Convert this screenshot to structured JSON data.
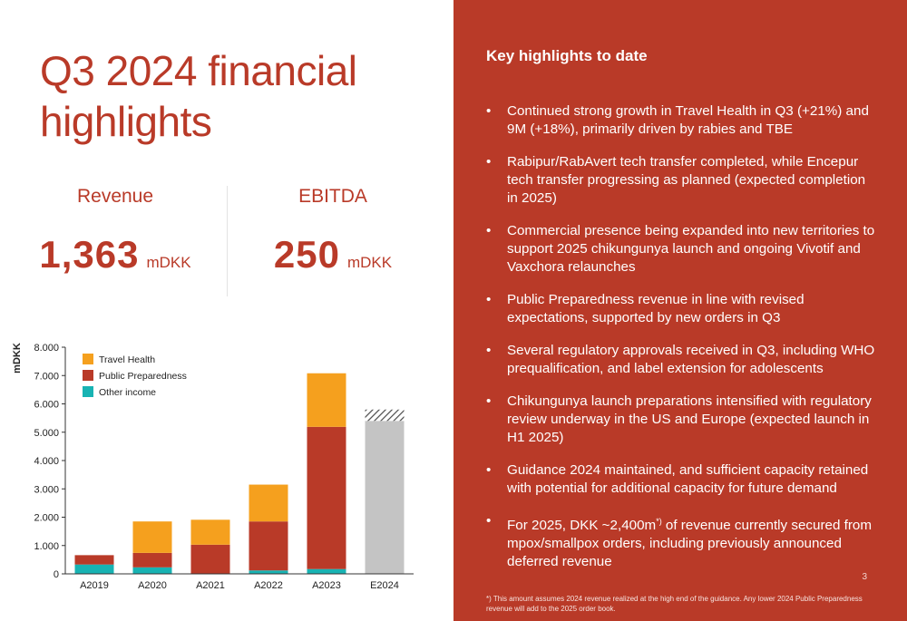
{
  "title": "Q3 2024 financial highlights",
  "kpis": {
    "revenue": {
      "label": "Revenue",
      "value": "1,363",
      "unit": "mDKK"
    },
    "ebitda": {
      "label": "EBITDA",
      "value": "250",
      "unit": "mDKK"
    }
  },
  "chart_data": {
    "type": "bar",
    "stacked": true,
    "ylabel": "mDKK",
    "ylim": [
      0,
      8000
    ],
    "yticks": [
      "0",
      "1.000",
      "2.000",
      "3.000",
      "4.000",
      "5.000",
      "6.000",
      "7.000",
      "8.000"
    ],
    "ytick_values": [
      0,
      1000,
      2000,
      3000,
      4000,
      5000,
      6000,
      7000,
      8000
    ],
    "categories": [
      "A2019",
      "A2020",
      "A2021",
      "A2022",
      "A2023",
      "E2024"
    ],
    "series": [
      {
        "name": "Other income",
        "color": "#18b3b3",
        "values": [
          330,
          230,
          0,
          120,
          170,
          0
        ]
      },
      {
        "name": "Public Preparedness",
        "color": "#b93a28",
        "values": [
          330,
          510,
          1030,
          1730,
          5020,
          0
        ]
      },
      {
        "name": "Travel Health",
        "color": "#f5a01e",
        "values": [
          0,
          1110,
          880,
          1300,
          1890,
          0
        ]
      }
    ],
    "guidance": {
      "category": "E2024",
      "low": 5400,
      "high": 5800,
      "color": "#c4c4c4",
      "range_pattern": "hatched"
    },
    "legend": {
      "placement": "top-left",
      "order": [
        "Travel Health",
        "Public Preparedness",
        "Other income"
      ]
    }
  },
  "highlights": {
    "heading": "Key highlights to date",
    "items": [
      "Continued strong growth in Travel Health in Q3 (+21%) and 9M (+18%), primarily driven by rabies and TBE",
      "Rabipur/RabAvert tech transfer completed, while Encepur tech transfer progressing as planned (expected completion in 2025)",
      "Commercial presence being expanded into new territories to support 2025 chikungunya launch and ongoing Vivotif and Vaxchora relaunches",
      "Public Preparedness revenue in line with revised expectations, supported by new orders in Q3",
      "Several regulatory approvals received in Q3, including WHO prequalification, and label extension for adolescents",
      "Chikungunya launch preparations intensified with regulatory review underway in the US and Europe (expected launch in H1 2025)",
      "Guidance 2024 maintained, and sufficient capacity retained with potential for additional capacity for future demand"
    ],
    "last_item": {
      "before": "For 2025, DKK ~2,400m",
      "sup": "*)",
      "after": " of revenue currently secured from mpox/smallpox orders, including previously announced deferred revenue"
    }
  },
  "footnote": "*) This amount assumes 2024 revenue realized at the high end of the guidance. Any lower 2024 Public Preparedness revenue will add to the 2025 order book.",
  "page_number": "3"
}
